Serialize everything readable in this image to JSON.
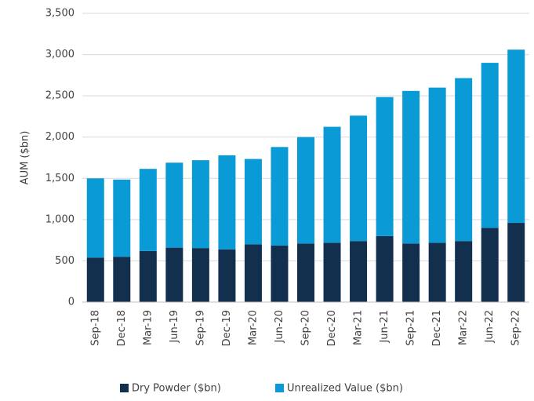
{
  "chart_data": {
    "type": "stacked_bar",
    "y_label": "AUM ($bn)",
    "categories": [
      "Sep-18",
      "Dec-18",
      "Mar-19",
      "Jun-19",
      "Sep-19",
      "Dec-19",
      "Mar-20",
      "Jun-20",
      "Sep-20",
      "Dec-20",
      "Mar-21",
      "Jun-21",
      "Sep-21",
      "Dec-21",
      "Mar-22",
      "Jun-22",
      "Sep-22"
    ],
    "series": [
      {
        "name": "Dry Powder ($bn)",
        "color": "#132f4e",
        "values": [
          540,
          550,
          620,
          660,
          655,
          640,
          700,
          685,
          710,
          720,
          740,
          800,
          710,
          720,
          740,
          900,
          960
        ]
      },
      {
        "name": "Unrealized Value ($bn)",
        "color": "#0a9bd6",
        "values": [
          960,
          935,
          995,
          1030,
          1065,
          1140,
          1035,
          1195,
          1290,
          1405,
          1520,
          1685,
          1850,
          1880,
          1975,
          2000,
          2100
        ]
      }
    ],
    "ylim": [
      0,
      3500
    ],
    "yticks": [
      0,
      500,
      {
        "value": 1000,
        "label": "1,000"
      },
      {
        "value": 1500,
        "label": "1,500"
      },
      {
        "value": 2000,
        "label": "2,000"
      },
      {
        "value": 2500,
        "label": "2,500"
      },
      {
        "value": 3000,
        "label": "3,000"
      },
      {
        "value": 3500,
        "label": "3,500"
      }
    ],
    "grid": true,
    "legend": "bottom"
  }
}
